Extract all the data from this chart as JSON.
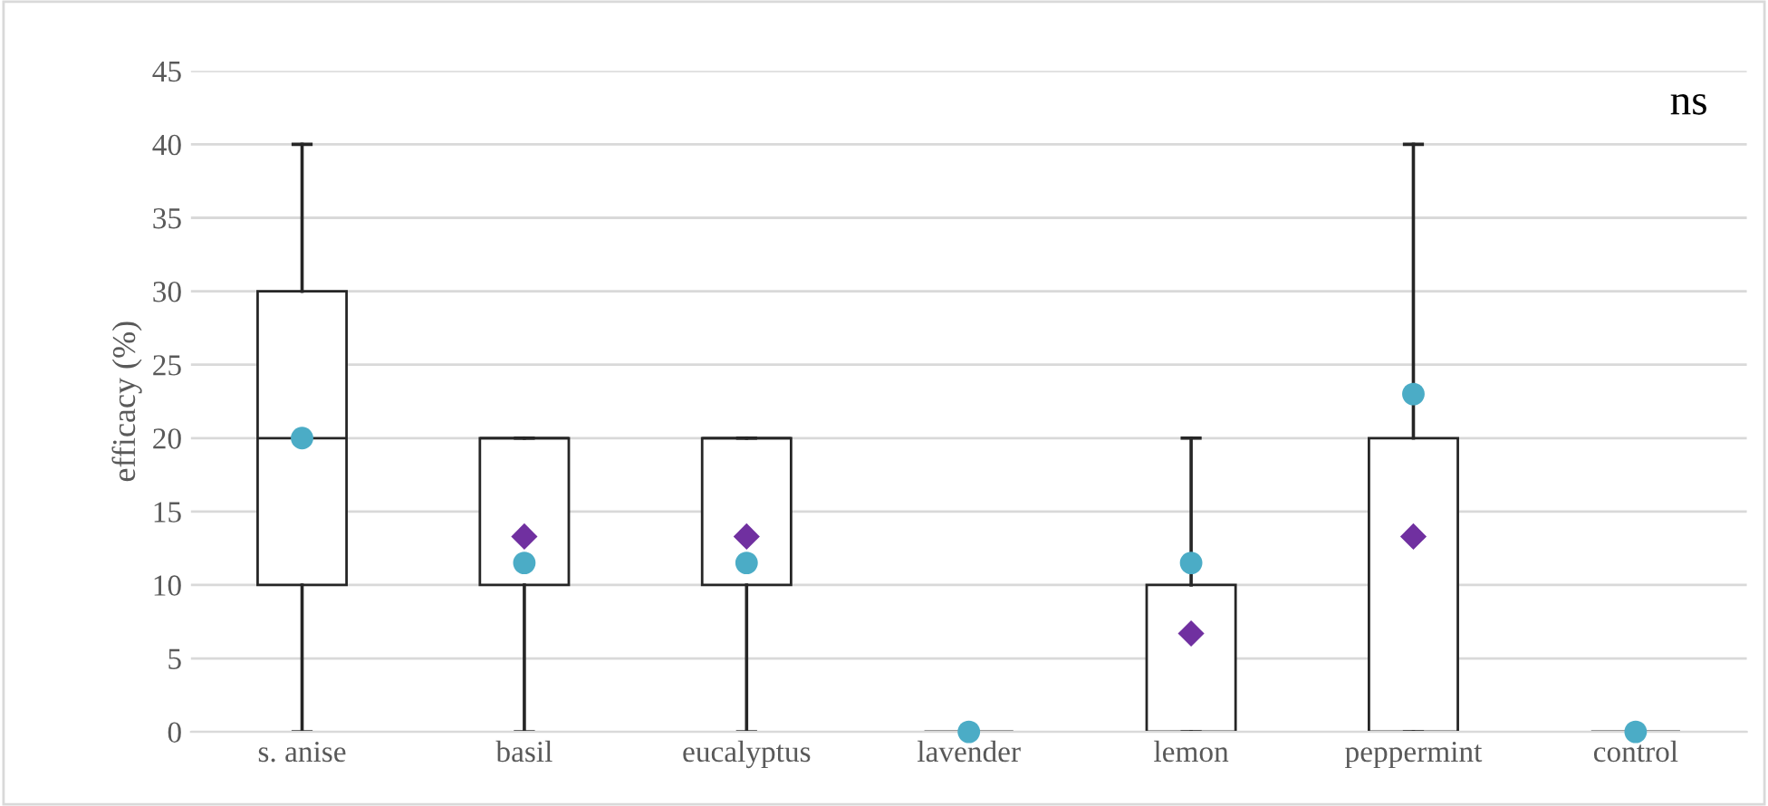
{
  "chart_data": {
    "type": "box",
    "ylabel": "efficacy (%)",
    "annotations": [
      "ns"
    ],
    "categories": [
      "s. anise",
      "basil",
      "eucalyptus",
      "lavender",
      "lemon",
      "peppermint",
      "control"
    ],
    "boxes": [
      {
        "low": 0,
        "q1": 10,
        "median": 20,
        "q3": 30,
        "high": 40
      },
      {
        "low": 0,
        "q1": 10,
        "median": 20,
        "q3": 20,
        "high": 20
      },
      {
        "low": 0,
        "q1": 10,
        "median": 20,
        "q3": 20,
        "high": 20
      },
      {
        "low": 0,
        "q1": 0,
        "median": 0,
        "q3": 0,
        "high": 0
      },
      {
        "low": 0,
        "q1": 0,
        "median": 0,
        "q3": 10,
        "high": 20
      },
      {
        "low": 0,
        "q1": 0,
        "median": 0,
        "q3": 20,
        "high": 40
      },
      {
        "low": 0,
        "q1": 0,
        "median": 0,
        "q3": 0,
        "high": 0
      }
    ],
    "series": [
      {
        "type": "scatter",
        "marker": "diamond",
        "color": "#7030a0",
        "values": [
          null,
          13.3,
          13.3,
          null,
          6.7,
          13.3,
          null
        ]
      },
      {
        "type": "scatter",
        "marker": "circle",
        "color": "#4bacc6",
        "values": [
          20,
          11.5,
          11.5,
          0,
          11.5,
          23,
          0
        ]
      }
    ],
    "color": "#262626",
    "ylim": [
      0,
      45
    ],
    "yticks": [
      0,
      5,
      10,
      15,
      20,
      25,
      30,
      35,
      40,
      45
    ],
    "grid": "y",
    "legend": false
  }
}
